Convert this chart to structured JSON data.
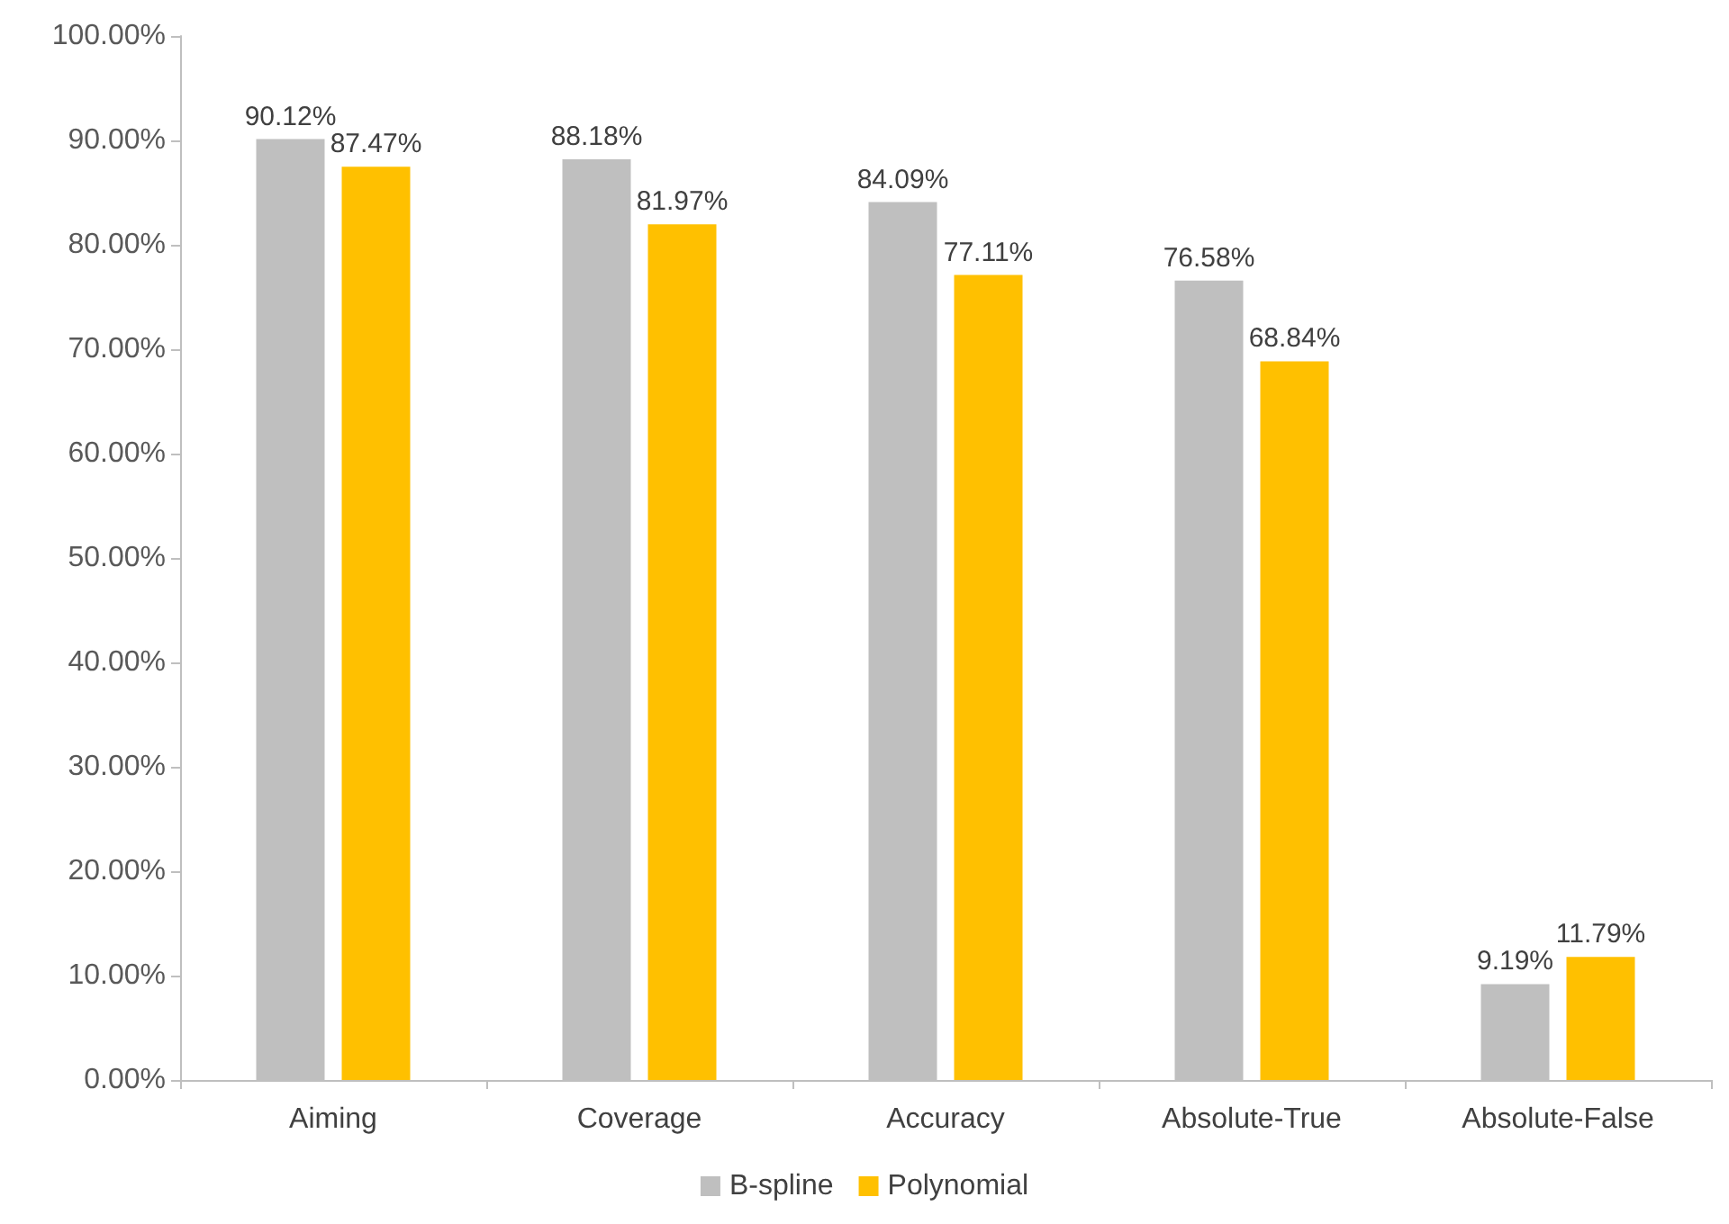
{
  "chart_data": {
    "type": "bar",
    "categories": [
      "Aiming",
      "Coverage",
      "Accuracy",
      "Absolute-True",
      "Absolute-False"
    ],
    "series": [
      {
        "name": "B-spline",
        "color": "#bfbfbf",
        "values": [
          90.12,
          88.18,
          84.09,
          76.58,
          9.19
        ],
        "value_labels": [
          "90.12%",
          "88.18%",
          "84.09%",
          "76.58%",
          "9.19%"
        ]
      },
      {
        "name": "Polynomial",
        "color": "#ffc000",
        "values": [
          87.47,
          81.97,
          77.11,
          68.84,
          11.79
        ],
        "value_labels": [
          "87.47%",
          "81.97%",
          "77.11%",
          "68.84%",
          "11.79%"
        ]
      }
    ],
    "ylim": [
      0,
      100
    ],
    "yticks": [
      {
        "value": 0,
        "label": "0.00%"
      },
      {
        "value": 10,
        "label": "10.00%"
      },
      {
        "value": 20,
        "label": "20.00%"
      },
      {
        "value": 30,
        "label": "30.00%"
      },
      {
        "value": 40,
        "label": "40.00%"
      },
      {
        "value": 50,
        "label": "50.00%"
      },
      {
        "value": 60,
        "label": "60.00%"
      },
      {
        "value": 70,
        "label": "70.00%"
      },
      {
        "value": 80,
        "label": "80.00%"
      },
      {
        "value": 90,
        "label": "90.00%"
      },
      {
        "value": 100,
        "label": "100.00%"
      }
    ],
    "grid": false,
    "legend": "bottom"
  }
}
